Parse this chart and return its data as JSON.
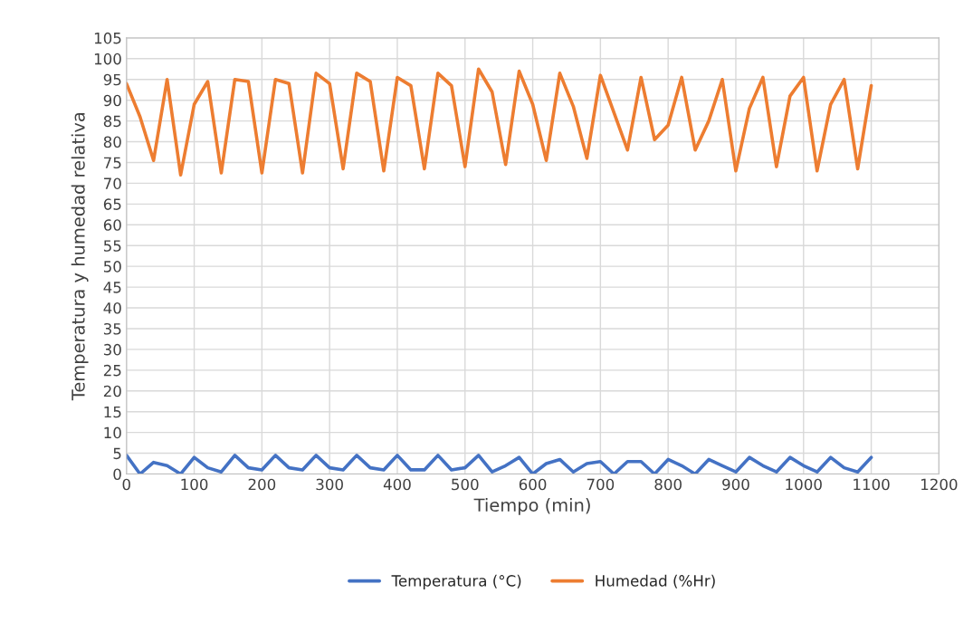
{
  "chart_data": {
    "type": "line",
    "xlabel": "Tiempo (min)",
    "ylabel": "Temperatura y humedad relativa",
    "x": [
      0,
      20,
      40,
      60,
      80,
      100,
      120,
      140,
      160,
      180,
      200,
      220,
      240,
      260,
      280,
      300,
      320,
      340,
      360,
      380,
      400,
      420,
      440,
      460,
      480,
      500,
      520,
      540,
      560,
      580,
      600,
      620,
      640,
      660,
      680,
      700,
      720,
      740,
      760,
      780,
      800,
      820,
      840,
      860,
      880,
      900,
      920,
      940,
      960,
      980,
      1000,
      1020,
      1040,
      1060,
      1080,
      1100
    ],
    "series": [
      {
        "name": "Temperatura (°C)",
        "color": "#4472c4",
        "values": [
          4.5,
          0,
          2.8,
          2,
          0,
          4,
          1.5,
          0.5,
          4.5,
          1.5,
          1,
          4.5,
          1.5,
          1,
          4.5,
          1.5,
          1,
          4.5,
          1.5,
          1,
          4.5,
          1,
          1,
          4.5,
          1,
          1.5,
          4.5,
          0.5,
          2,
          4,
          0,
          2.5,
          3.5,
          0.5,
          2.5,
          3,
          0,
          3,
          3,
          0,
          3.5,
          2,
          0,
          3.5,
          2,
          0.5,
          4,
          2,
          0.5,
          4,
          2,
          0.5,
          4,
          1.5,
          0.5,
          4
        ]
      },
      {
        "name": "Humedad (%Hr)",
        "color": "#ed7d31",
        "values": [
          94,
          86,
          75.5,
          95,
          72,
          89,
          94.5,
          72.5,
          95,
          94.5,
          72.5,
          95,
          94,
          72.5,
          96.5,
          94,
          73.5,
          96.5,
          94.5,
          73,
          95.5,
          93.5,
          73.5,
          96.5,
          93.5,
          74,
          97.5,
          92,
          74.5,
          97,
          89,
          75.5,
          96.5,
          88.5,
          76,
          96,
          87,
          78,
          95.5,
          80.5,
          84,
          95.5,
          78,
          85,
          95,
          73,
          88,
          95.5,
          74,
          91,
          95.5,
          73,
          89,
          95,
          73.5,
          93.5
        ]
      }
    ],
    "xlim": [
      0,
      1200
    ],
    "xticks": [
      0,
      100,
      200,
      300,
      400,
      500,
      600,
      700,
      800,
      900,
      1000,
      1100,
      1200
    ],
    "ylim": [
      0,
      105
    ],
    "yticks": [
      0,
      5,
      10,
      15,
      20,
      25,
      30,
      35,
      40,
      45,
      50,
      55,
      60,
      65,
      70,
      75,
      80,
      85,
      90,
      95,
      100,
      105
    ],
    "grid": true,
    "legend": "bottom",
    "marker": "none",
    "line_style": "solid"
  }
}
